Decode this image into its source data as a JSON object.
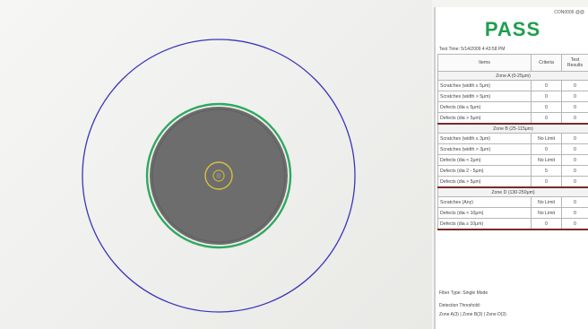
{
  "report": {
    "id_label": "CON0006 @@",
    "status": "PASS",
    "test_time": "Test Time: 5/14/2009 4:43:58 PM",
    "headers": {
      "items": "Items",
      "criteria": "Criteria",
      "result": "Test Results"
    },
    "zones": [
      {
        "title": "Zone A (0-25μm)",
        "rows": [
          {
            "item": "Scratches (width ≤ 5μm)",
            "criteria": "0",
            "result": "0"
          },
          {
            "item": "Scratches (width > 5μm)",
            "criteria": "0",
            "result": "0"
          },
          {
            "item": "Defects (dia ≤ 5μm)",
            "criteria": "0",
            "result": "0"
          },
          {
            "item": "Defects (dia > 5μm)",
            "criteria": "0",
            "result": "0"
          }
        ]
      },
      {
        "title": "Zone B (25-115μm)",
        "rows": [
          {
            "item": "Scratches (width ≤ 3μm)",
            "criteria": "No Limit",
            "result": "0"
          },
          {
            "item": "Scratches (width > 3μm)",
            "criteria": "0",
            "result": "0"
          },
          {
            "item": "Defects (dia < 2μm)",
            "criteria": "No Limit",
            "result": "0"
          },
          {
            "item": "Defects (dia 2 - 5μm)",
            "criteria": "5",
            "result": "0"
          },
          {
            "item": "Defects (dia > 5μm)",
            "criteria": "0",
            "result": "0"
          }
        ]
      },
      {
        "title": "Zone D (130-250μm)",
        "rows": [
          {
            "item": "Scratches (Any)",
            "criteria": "No Limit",
            "result": "0"
          },
          {
            "item": "Defects (dia < 10μm)",
            "criteria": "No Limit",
            "result": "0"
          },
          {
            "item": "Defects (dia ≥ 10μm)",
            "criteria": "0",
            "result": "0"
          }
        ]
      }
    ],
    "fiber_type": "Fiber Type: Single Mode",
    "threshold_label": "Detection Threshold:",
    "threshold_values": "Zone A(3) | Zone B(3) | Zone D(3)"
  },
  "colors": {
    "pass_green": "#1e9f4e",
    "outer_ring": "#3a36b8",
    "cladding_ring": "#2fa860",
    "core_ring": "#d8c040",
    "fiber_fill": "#6d6d6d"
  },
  "icons": {
    "fiber_image": "fiber-end-face"
  }
}
